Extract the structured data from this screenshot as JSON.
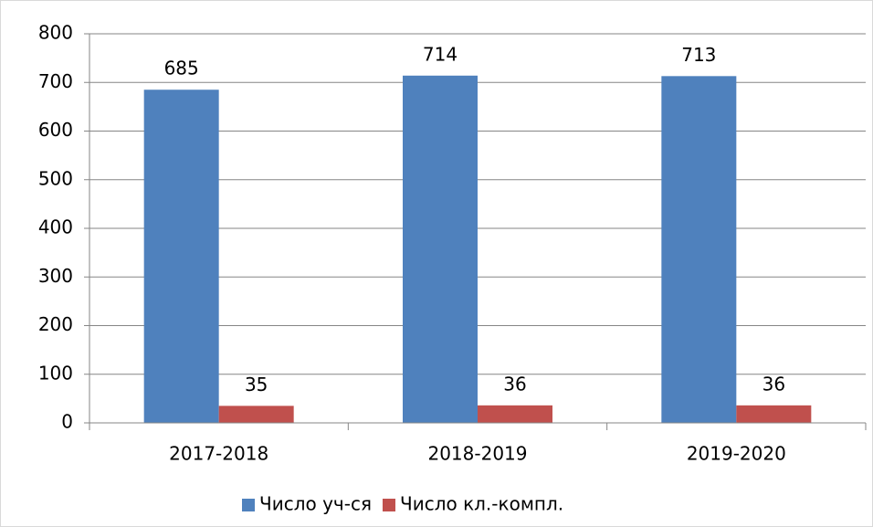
{
  "chart_data": {
    "type": "bar",
    "categories": [
      "2017-2018",
      "2018-2019",
      "2019-2020"
    ],
    "series": [
      {
        "name": "Число уч-ся",
        "color": "#4f81bd",
        "values": [
          685,
          714,
          713
        ]
      },
      {
        "name": "Число кл.-компл.",
        "color": "#c0504d",
        "values": [
          35,
          36,
          36
        ]
      }
    ],
    "ylim": [
      0,
      800
    ],
    "yticks": [
      0,
      100,
      200,
      300,
      400,
      500,
      600,
      700,
      800
    ],
    "grid": true,
    "legend": "bottom"
  }
}
